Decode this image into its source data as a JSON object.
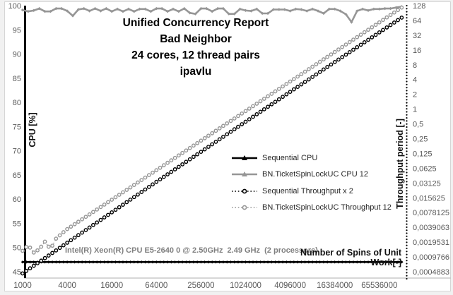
{
  "header": {
    "title_lines": [
      "Unified Concurrency Report",
      "Bad Neighbor",
      "24 cores, 12 thread pairs",
      "ipavlu"
    ]
  },
  "annotation": {
    "text": "Intel(R) Xeon(R) CPU E5-2640 0 @ 2.50GHz  2.49 GHz  (2 processors)"
  },
  "colors": {
    "series_black": "#000000",
    "series_gray": "#969696",
    "tick_text": "#595959",
    "axis_line": "#bfbfbf",
    "annotation_text": "#7f7f7f"
  },
  "chart_data": {
    "type": "line",
    "title": "Unified Concurrency Report - Bad Neighbor - 24 cores, 12 thread pairs - ipavlu",
    "x_axis": {
      "label": "Number of Spins of Unit Work[-]",
      "scale": "log2",
      "min": 1000,
      "max": 150000000,
      "ticks": [
        1000,
        4000,
        16000,
        64000,
        256000,
        1024000,
        4096000,
        16384000,
        65536000
      ]
    },
    "y_left": {
      "label": "CPU [%]",
      "min": 45,
      "max": 100,
      "ticks": [
        100,
        95,
        90,
        85,
        80,
        75,
        70,
        65,
        60,
        55,
        50,
        45
      ]
    },
    "y_right": {
      "label": "Throughput period [-]",
      "scale": "log2",
      "top_value": 128,
      "tick_labels": [
        "128",
        "64",
        "32",
        "16",
        "8",
        "4",
        "2",
        "1",
        "0,5",
        "0,25",
        "0,125",
        "0,0625",
        "0,03125",
        "0,015625",
        "0,0078125",
        "0,0039063",
        "0,0019531",
        "0,0009766",
        "0,0004883"
      ]
    },
    "legend_position": "middle-right",
    "grid": false,
    "series": [
      {
        "name": "Sequential CPU",
        "axis": "left",
        "color": "#000000",
        "line": "solid",
        "marker": "diamond",
        "mode": "constant",
        "value": 47.0,
        "x_range": [
          1000,
          131072000
        ]
      },
      {
        "name": "BN.TicketSpinLockUC CPU 12",
        "axis": "left",
        "color": "#969696",
        "line": "solid",
        "marker": "diamond",
        "mode": "dense",
        "x_start": 1000,
        "points_per_octave": 4,
        "values": [
          99.1,
          98.8,
          99.0,
          99.4,
          98.8,
          98.8,
          99.4,
          99.4,
          98.9,
          97.9,
          99.2,
          99.4,
          98.9,
          99.4,
          98.9,
          99.4,
          98.8,
          99.3,
          98.8,
          99.3,
          98.8,
          99.3,
          99.3,
          98.8,
          99.4,
          99.4,
          98.8,
          99.3,
          98.8,
          99.4,
          98.5,
          98.3,
          99.4,
          99.4,
          98.8,
          99.4,
          99.4,
          98.3,
          98.3,
          99.3,
          99.0,
          98.9,
          99.3,
          98.4,
          98.4,
          99.2,
          99.2,
          99.2,
          98.9,
          99.3,
          99.2,
          98.9,
          99.3,
          98.9,
          98.4,
          99.3,
          99.3,
          98.9,
          98.2,
          96.6,
          98.9,
          99.3,
          99.0,
          99.3,
          99.3,
          99.4,
          99.4,
          99.6,
          99.8
        ]
      },
      {
        "name": "Sequential Throughput x 2",
        "axis": "right",
        "color": "#000000",
        "line": "dotted",
        "marker": "circle",
        "mode": "anchors",
        "anchors": [
          [
            1000,
            0.00045
          ],
          [
            4000,
            0.0019
          ],
          [
            16000,
            0.0079
          ],
          [
            64000,
            0.033
          ],
          [
            256000,
            0.135
          ],
          [
            1024000,
            0.553
          ],
          [
            4096000,
            2.25
          ],
          [
            16384000,
            9.1
          ],
          [
            65536000,
            36.5
          ],
          [
            131072000,
            73
          ]
        ]
      },
      {
        "name": "BN.TicketSpinLockUC Throughput 12",
        "axis": "right",
        "color": "#969696",
        "line": "dotted",
        "marker": "circle",
        "mode": "anchors",
        "anchors": [
          [
            1000,
            0.0013
          ],
          [
            1189,
            0.0017
          ],
          [
            1414,
            0.0012
          ],
          [
            1682,
            0.0014
          ],
          [
            2000,
            0.002
          ],
          [
            2378,
            0.0014
          ],
          [
            2828,
            0.0023
          ],
          [
            3364,
            0.0029
          ],
          [
            4000,
            0.0036
          ],
          [
            16000,
            0.0143
          ],
          [
            64000,
            0.057
          ],
          [
            256000,
            0.228
          ],
          [
            1024000,
            0.912
          ],
          [
            4096000,
            3.65
          ],
          [
            16384000,
            14.6
          ],
          [
            65536000,
            58.4
          ],
          [
            131072000,
            117
          ]
        ]
      }
    ]
  }
}
